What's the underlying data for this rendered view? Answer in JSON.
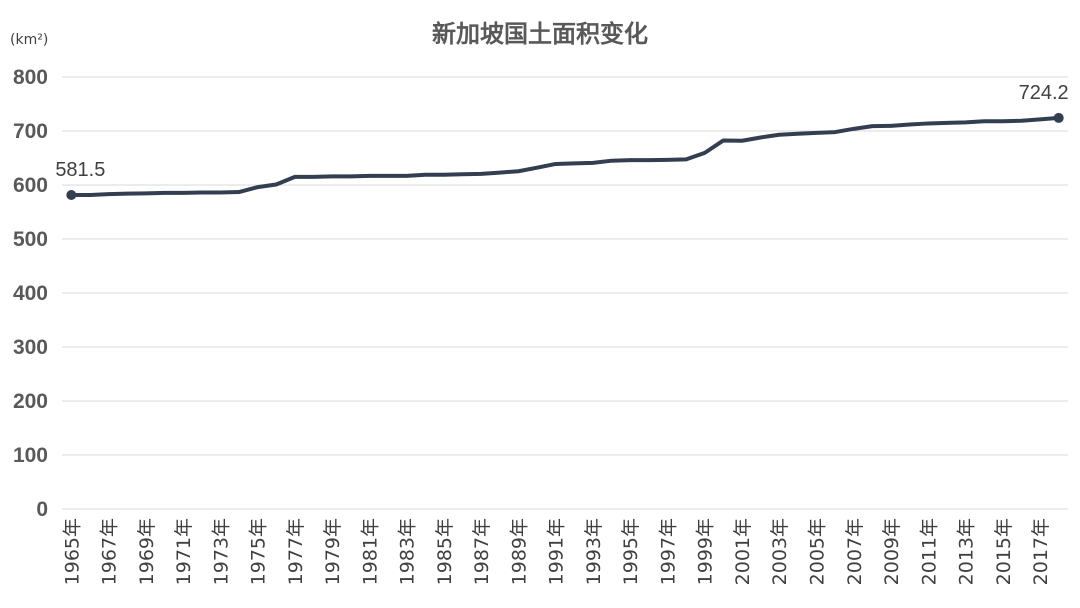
{
  "chart_data": {
    "type": "line",
    "title": "新加坡国土面积变化",
    "ylabel": "(km²)",
    "xlabel": "",
    "ylim": [
      0,
      800
    ],
    "yticks": [
      0,
      100,
      200,
      300,
      400,
      500,
      600,
      700,
      800
    ],
    "grid": true,
    "categories": [
      "1965年",
      "1966年",
      "1967年",
      "1968年",
      "1969年",
      "1970年",
      "1971年",
      "1972年",
      "1973年",
      "1974年",
      "1975年",
      "1976年",
      "1977年",
      "1978年",
      "1979年",
      "1980年",
      "1981年",
      "1982年",
      "1983年",
      "1984年",
      "1985年",
      "1986年",
      "1987年",
      "1988年",
      "1989年",
      "1990年",
      "1991年",
      "1992年",
      "1993年",
      "1994年",
      "1995年",
      "1996年",
      "1997年",
      "1998年",
      "1999年",
      "2000年",
      "2001年",
      "2002年",
      "2003年",
      "2004年",
      "2005年",
      "2006年",
      "2007年",
      "2008年",
      "2009年",
      "2010年",
      "2011年",
      "2012年",
      "2013年",
      "2014年",
      "2015年",
      "2016年",
      "2017年",
      "2018年"
    ],
    "visible_tick_labels": [
      "1965年",
      "1967年",
      "1969年",
      "1971年",
      "1973年",
      "1975年",
      "1977年",
      "1979年",
      "1981年",
      "1983年",
      "1985年",
      "1987年",
      "1989年",
      "1991年",
      "1993年",
      "1995年",
      "1997年",
      "1999年",
      "2001年",
      "2003年",
      "2005年",
      "2007年",
      "2009年",
      "2011年",
      "2013年",
      "2015年",
      "2017年"
    ],
    "series": [
      {
        "values": [
          581.5,
          581.5,
          583,
          584,
          584.5,
          585.5,
          585.5,
          586,
          586,
          587,
          596,
          601,
          615,
          615,
          616,
          616,
          617,
          617,
          617,
          619,
          619,
          620,
          620.5,
          623,
          625.5,
          632,
          639,
          640,
          641,
          645,
          646,
          646,
          646.5,
          647.5,
          659.5,
          682.5,
          682,
          688,
          693,
          695,
          696.5,
          698,
          704,
          709,
          709.5,
          712,
          714,
          715,
          716,
          718,
          718,
          719,
          721.5,
          724.2
        ]
      }
    ],
    "data_labels": [
      {
        "category": "1965年",
        "text": "581.5"
      },
      {
        "category": "2018年",
        "text": "724.2"
      }
    ],
    "line_color": "#333f50"
  }
}
